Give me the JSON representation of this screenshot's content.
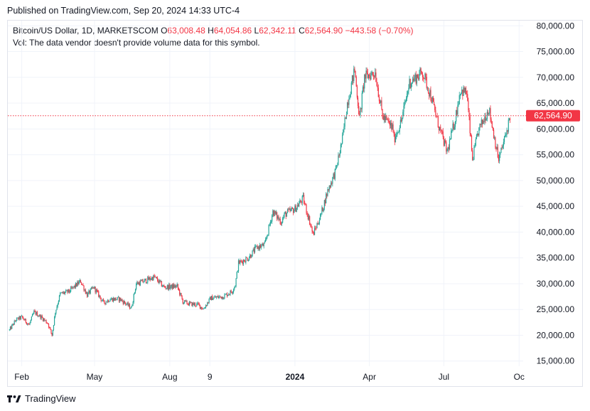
{
  "header": {
    "published": "Published on TradingView.com, Sep 20, 2024 14:33 UTC-4"
  },
  "legend": {
    "symbol": "Bitcoin/US Dollar, 1D, MARKETSCOM",
    "o_label": "O",
    "o_value": "63,008.48",
    "h_label": "H",
    "h_value": "64,054.86",
    "l_label": "L",
    "l_value": "62,342.11",
    "c_label": "C",
    "c_value": "62,564.90",
    "change": "−443.58 (−0.70%)",
    "volume_note": "Vol: The data vendor doesn't provide volume data for this symbol."
  },
  "footer": {
    "brand": "TradingView"
  },
  "colors": {
    "up": "#26a69a",
    "down": "#f23645",
    "grid": "#f0f3fa",
    "price_line": "#f23645",
    "text": "#131722"
  },
  "chart_data": {
    "type": "candlestick",
    "x_range": [
      "2023-01-15",
      "2024-10-06"
    ],
    "y_range": [
      14000,
      81000
    ],
    "y_ticks": [
      "15,000.00",
      "20,000.00",
      "25,000.00",
      "30,000.00",
      "35,000.00",
      "40,000.00",
      "45,000.00",
      "50,000.00",
      "55,000.00",
      "60,000.00",
      "65,000.00",
      "70,000.00",
      "75,000.00",
      "80,000.00"
    ],
    "x_ticks": [
      {
        "date": "2023-02-01",
        "label": "Feb",
        "bold": false
      },
      {
        "date": "2023-05-01",
        "label": "May",
        "bold": false
      },
      {
        "date": "2023-08-01",
        "label": "Aug",
        "bold": false
      },
      {
        "date": "2023-09-19",
        "label": "9",
        "bold": false
      },
      {
        "date": "2024-01-01",
        "label": "2024",
        "bold": true
      },
      {
        "date": "2024-04-01",
        "label": "Apr",
        "bold": false
      },
      {
        "date": "2024-07-01",
        "label": "Jul",
        "bold": false
      },
      {
        "date": "2024-10-01",
        "label": "Oc",
        "bold": false
      }
    ],
    "last_price": 62564.9,
    "last_price_label": "62,564.90",
    "price_path": [
      [
        "2023-01-17",
        21000
      ],
      [
        "2023-01-25",
        23000
      ],
      [
        "2023-02-01",
        23500
      ],
      [
        "2023-02-10",
        22000
      ],
      [
        "2023-02-16",
        24500
      ],
      [
        "2023-02-25",
        23500
      ],
      [
        "2023-03-05",
        22300
      ],
      [
        "2023-03-10",
        20000
      ],
      [
        "2023-03-14",
        24500
      ],
      [
        "2023-03-20",
        28000
      ],
      [
        "2023-03-31",
        28500
      ],
      [
        "2023-04-14",
        30500
      ],
      [
        "2023-04-22",
        27800
      ],
      [
        "2023-04-30",
        29300
      ],
      [
        "2023-05-12",
        26300
      ],
      [
        "2023-05-20",
        27000
      ],
      [
        "2023-06-01",
        27000
      ],
      [
        "2023-06-15",
        25300
      ],
      [
        "2023-06-21",
        30000
      ],
      [
        "2023-07-01",
        30500
      ],
      [
        "2023-07-13",
        31300
      ],
      [
        "2023-07-25",
        29300
      ],
      [
        "2023-08-10",
        29500
      ],
      [
        "2023-08-17",
        26500
      ],
      [
        "2023-08-25",
        26100
      ],
      [
        "2023-09-05",
        25900
      ],
      [
        "2023-09-11",
        25100
      ],
      [
        "2023-09-20",
        27200
      ],
      [
        "2023-10-05",
        27500
      ],
      [
        "2023-10-16",
        28500
      ],
      [
        "2023-10-20",
        29800
      ],
      [
        "2023-10-24",
        34000
      ],
      [
        "2023-11-05",
        35000
      ],
      [
        "2023-11-15",
        37000
      ],
      [
        "2023-11-25",
        37500
      ],
      [
        "2023-12-05",
        44000
      ],
      [
        "2023-12-15",
        42000
      ],
      [
        "2023-12-20",
        43500
      ],
      [
        "2024-01-01",
        44500
      ],
      [
        "2024-01-11",
        46500
      ],
      [
        "2024-01-20",
        41500
      ],
      [
        "2024-01-23",
        39500
      ],
      [
        "2024-02-01",
        43000
      ],
      [
        "2024-02-10",
        48000
      ],
      [
        "2024-02-20",
        52000
      ],
      [
        "2024-02-28",
        58000
      ],
      [
        "2024-03-05",
        65000
      ],
      [
        "2024-03-14",
        71500
      ],
      [
        "2024-03-20",
        62000
      ],
      [
        "2024-03-26",
        70000
      ],
      [
        "2024-04-08",
        71000
      ],
      [
        "2024-04-17",
        62500
      ],
      [
        "2024-04-30",
        60000
      ],
      [
        "2024-05-01",
        58000
      ],
      [
        "2024-05-10",
        61500
      ],
      [
        "2024-05-20",
        69000
      ],
      [
        "2024-06-05",
        71000
      ],
      [
        "2024-06-15",
        66500
      ],
      [
        "2024-06-24",
        61000
      ],
      [
        "2024-07-05",
        55500
      ],
      [
        "2024-07-15",
        62000
      ],
      [
        "2024-07-21",
        67500
      ],
      [
        "2024-07-29",
        67000
      ],
      [
        "2024-08-05",
        54000
      ],
      [
        "2024-08-12",
        59500
      ],
      [
        "2024-08-25",
        64000
      ],
      [
        "2024-09-06",
        54000
      ],
      [
        "2024-09-15",
        59000
      ],
      [
        "2024-09-20",
        62565
      ]
    ]
  }
}
